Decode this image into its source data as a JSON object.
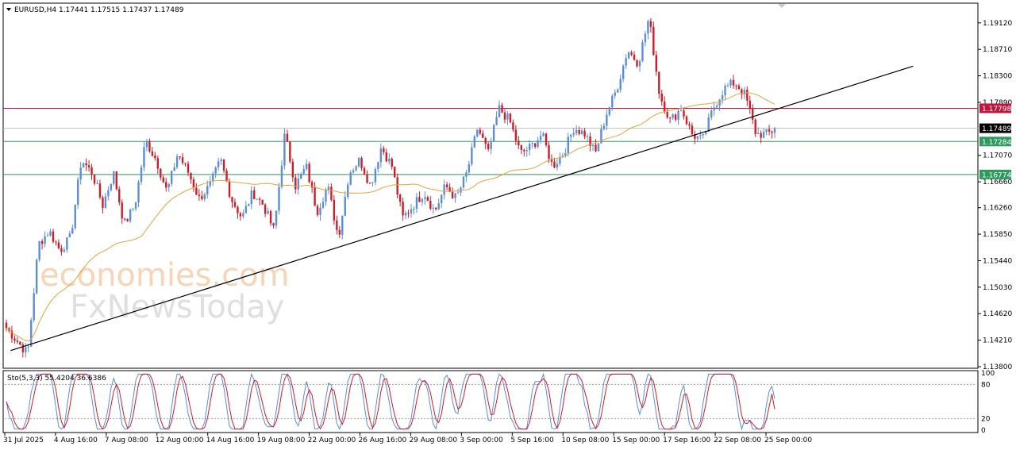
{
  "chart_title": "EURUSD,H4  1.17441 1.17515 1.17437 1.17489",
  "stoch_title": "Sto(5,3,3) 55.4204 36.6386",
  "watermark": {
    "line1": "economies.com",
    "line2": "FxNewsToday"
  },
  "colors": {
    "bull": "#5b8ed8",
    "bear": "#d01c28",
    "ma": "#e2a33a",
    "resistance": "#c2143c",
    "support": "#2e9a5e",
    "trend": "#000000",
    "stoch_main": "#5b8ed8",
    "stoch_signal": "#d01c28"
  },
  "chart_data": {
    "type": "candlestick",
    "ylim": [
      1.138,
      1.194
    ],
    "price_ticks": [
      "1.19120",
      "1.18710",
      "1.18300",
      "1.17890",
      "1.17070",
      "1.16660",
      "1.16260",
      "1.15850",
      "1.15440",
      "1.15030",
      "1.14620",
      "1.14210",
      "1.13800"
    ],
    "x_labels": [
      "31 Jul 2025",
      "4 Aug 16:00",
      "7 Aug 08:00",
      "12 Aug 00:00",
      "14 Aug 16:00",
      "19 Aug 08:00",
      "22 Aug 00:00",
      "26 Aug 16:00",
      "29 Aug 08:00",
      "3 Sep 00:00",
      "5 Sep 16:00",
      "10 Sep 08:00",
      "15 Sep 00:00",
      "17 Sep 16:00",
      "22 Sep 08:00",
      "25 Sep 00:00"
    ],
    "current_price": "1.17489",
    "resistance": {
      "value": 1.17798,
      "label": "1.17798"
    },
    "support_1": {
      "value": 1.17284,
      "label": "1.17284"
    },
    "support_2": {
      "value": 1.16774,
      "label": "1.16774"
    },
    "price_path": [
      1.144,
      1.142,
      1.14,
      1.157,
      1.159,
      1.156,
      1.158,
      1.17,
      1.168,
      1.163,
      1.168,
      1.16,
      1.163,
      1.173,
      1.17,
      1.165,
      1.171,
      1.168,
      1.164,
      1.166,
      1.17,
      1.164,
      1.161,
      1.165,
      1.163,
      1.159,
      1.174,
      1.166,
      1.169,
      1.162,
      1.166,
      1.158,
      1.168,
      1.17,
      1.166,
      1.172,
      1.169,
      1.161,
      1.163,
      1.165,
      1.162,
      1.166,
      1.164,
      1.168,
      1.175,
      1.171,
      1.178,
      1.176,
      1.171,
      1.172,
      1.174,
      1.169,
      1.171,
      1.175,
      1.174,
      1.171,
      1.177,
      1.181,
      1.187,
      1.185,
      1.192,
      1.18,
      1.176,
      1.178,
      1.174,
      1.173,
      1.178,
      1.181,
      1.182,
      1.18,
      1.174,
      1.174,
      1.1749
    ],
    "ma_period": 50,
    "trendline": {
      "from": [
        0.006,
        1.1405
      ],
      "to": [
        0.935,
        1.1845
      ]
    },
    "stochastic": {
      "params": "5,3,3",
      "main": 55.4204,
      "signal": 36.6386,
      "levels": [
        20,
        80
      ],
      "ylim": [
        0,
        100
      ],
      "ticks": [
        "100",
        "80",
        "20",
        "0"
      ]
    }
  }
}
